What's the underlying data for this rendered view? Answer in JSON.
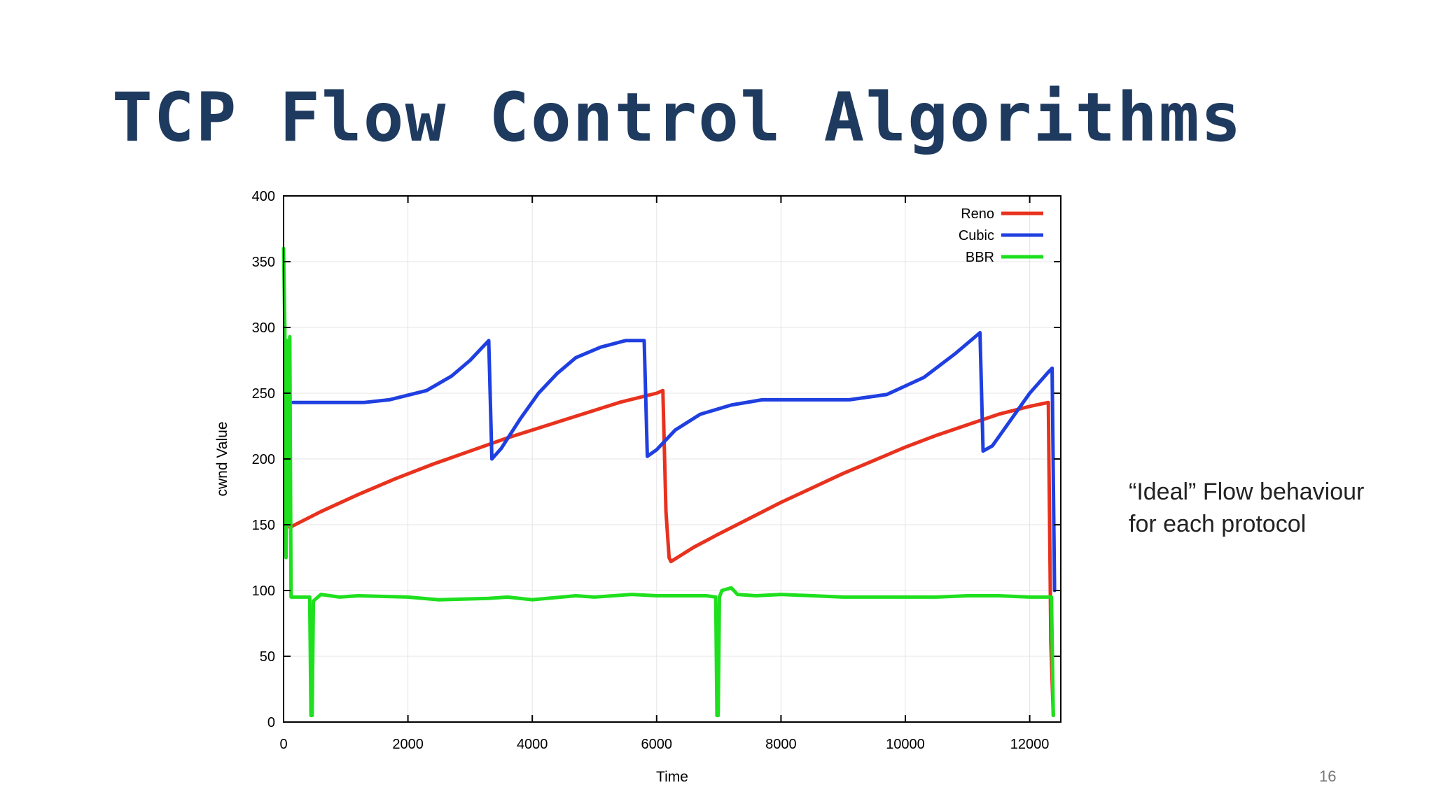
{
  "slide": {
    "title": "TCP Flow Control Algorithms",
    "note_line1": "“Ideal” Flow behaviour",
    "note_line2": "for each protocol",
    "page_number": "16"
  },
  "chart_data": {
    "type": "line",
    "title": "",
    "xlabel": "Time",
    "ylabel": "cwnd Value",
    "xlim": [
      0,
      12500
    ],
    "ylim": [
      0,
      400
    ],
    "xticks": [
      0,
      2000,
      4000,
      6000,
      8000,
      10000,
      12000
    ],
    "yticks": [
      0,
      50,
      100,
      150,
      200,
      250,
      300,
      350,
      400
    ],
    "grid": true,
    "legend_position": "top-right",
    "series": [
      {
        "name": "Reno",
        "color": "#e8321e",
        "x": [
          100,
          600,
          1200,
          1800,
          2400,
          3000,
          3600,
          4200,
          4800,
          5400,
          6000,
          6100,
          6150,
          6200,
          6230,
          6600,
          7000,
          7500,
          8000,
          8500,
          9000,
          9500,
          10000,
          10500,
          11000,
          11500,
          12000,
          12300,
          12340,
          12380
        ],
        "y": [
          148,
          160,
          173,
          185,
          196,
          206,
          216,
          225,
          234,
          243,
          250,
          252,
          160,
          125,
          122,
          133,
          143,
          155,
          167,
          178,
          189,
          199,
          209,
          218,
          226,
          234,
          240,
          243,
          60,
          5
        ]
      },
      {
        "name": "Cubic",
        "color": "#1f3fe0",
        "x": [
          150,
          1300,
          1700,
          2300,
          2700,
          3000,
          3300,
          3350,
          3500,
          3800,
          4100,
          4400,
          4700,
          5100,
          5500,
          5800,
          5850,
          6000,
          6300,
          6700,
          7200,
          7700,
          8500,
          9100,
          9700,
          10300,
          10800,
          11200,
          11250,
          11400,
          11700,
          12000,
          12300,
          12360,
          12400
        ],
        "y": [
          243,
          243,
          245,
          252,
          263,
          275,
          290,
          200,
          208,
          230,
          250,
          265,
          277,
          285,
          290,
          290,
          202,
          207,
          222,
          234,
          241,
          245,
          245,
          245,
          249,
          262,
          280,
          296,
          206,
          210,
          230,
          250,
          266,
          269,
          100
        ]
      },
      {
        "name": "BBR",
        "color": "#1ee01e",
        "x": [
          0,
          20,
          40,
          60,
          80,
          100,
          120,
          140,
          160,
          300,
          420,
          440,
          460,
          480,
          600,
          900,
          1200,
          2000,
          2500,
          3300,
          3600,
          4000,
          4700,
          5000,
          5600,
          6000,
          6800,
          6950,
          6970,
          6990,
          7010,
          7050,
          7200,
          7300,
          7600,
          8000,
          9000,
          10000,
          10500,
          11000,
          11500,
          12000,
          12300,
          12350,
          12380
        ],
        "y": [
          360,
          300,
          125,
          290,
          150,
          293,
          95,
          95,
          95,
          95,
          95,
          5,
          5,
          92,
          97,
          95,
          96,
          95,
          93,
          94,
          95,
          93,
          96,
          95,
          97,
          96,
          96,
          95,
          5,
          5,
          95,
          100,
          102,
          97,
          96,
          97,
          95,
          95,
          95,
          96,
          96,
          95,
          95,
          95,
          5
        ]
      }
    ]
  }
}
